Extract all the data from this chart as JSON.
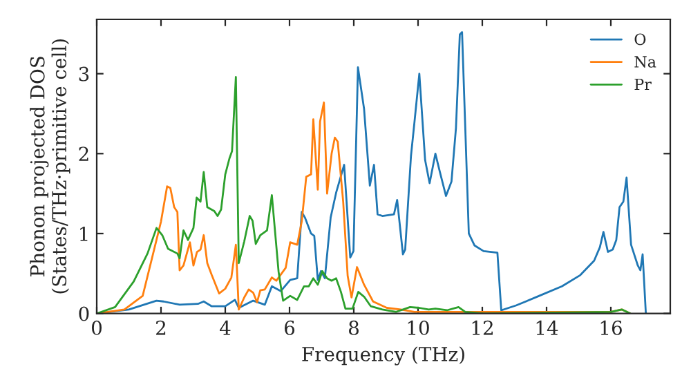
{
  "chart_data": {
    "type": "line",
    "xlabel": "Frequency (THz)",
    "ylabel": "Phonon projected DOS\n(States/THz·primitive cell)",
    "xlim": [
      0,
      17.85
    ],
    "ylim": [
      0,
      3.68
    ],
    "xticks": [
      0,
      2,
      4,
      6,
      8,
      10,
      12,
      14,
      16
    ],
    "yticks": [
      0,
      1,
      2,
      3
    ],
    "grid": false,
    "legend": "top right",
    "marker": "none",
    "line_style": "solid",
    "series": [
      {
        "name": "O",
        "color": "#1f77b4",
        "x": [
          0,
          1.0,
          1.86,
          2.08,
          2.58,
          3.15,
          3.33,
          3.58,
          4.0,
          4.3,
          4.42,
          4.87,
          5.23,
          5.45,
          5.73,
          6.02,
          6.24,
          6.38,
          6.48,
          6.67,
          6.77,
          6.88,
          6.98,
          7.1,
          7.28,
          7.45,
          7.7,
          7.89,
          7.99,
          8.13,
          8.32,
          8.5,
          8.63,
          8.74,
          8.89,
          9.25,
          9.35,
          9.53,
          9.6,
          9.78,
          9.89,
          10.04,
          10.22,
          10.36,
          10.54,
          10.68,
          10.87,
          11.04,
          11.18,
          11.3,
          11.37,
          11.58,
          11.76,
          12.04,
          12.47,
          12.59,
          13.05,
          13.77,
          14.48,
          15.05,
          15.48,
          15.66,
          15.77,
          15.91,
          16.06,
          16.17,
          16.27,
          16.39,
          16.49,
          16.63,
          16.84,
          16.92,
          16.99,
          17.09
        ],
        "values": [
          0,
          0.05,
          0.16,
          0.15,
          0.11,
          0.12,
          0.15,
          0.09,
          0.09,
          0.17,
          0.07,
          0.16,
          0.11,
          0.34,
          0.28,
          0.42,
          0.44,
          1.27,
          1.2,
          1.0,
          0.97,
          0.42,
          0.53,
          0.44,
          1.2,
          1.51,
          1.86,
          0.7,
          0.78,
          3.08,
          2.56,
          1.6,
          1.86,
          1.24,
          1.22,
          1.24,
          1.42,
          0.74,
          0.8,
          1.97,
          2.4,
          3.0,
          1.92,
          1.63,
          2.0,
          1.77,
          1.47,
          1.65,
          2.32,
          3.49,
          3.52,
          1.0,
          0.85,
          0.78,
          0.76,
          0.04,
          0.1,
          0.22,
          0.34,
          0.48,
          0.66,
          0.83,
          1.02,
          0.77,
          0.8,
          0.92,
          1.33,
          1.4,
          1.7,
          0.86,
          0.6,
          0.54,
          0.74,
          0
        ]
      },
      {
        "name": "Na",
        "color": "#ff7f0e",
        "x": [
          0,
          0.86,
          1.43,
          1.86,
          2.0,
          2.19,
          2.29,
          2.41,
          2.51,
          2.58,
          2.7,
          2.9,
          3.01,
          3.12,
          3.23,
          3.33,
          3.44,
          3.58,
          3.81,
          4.0,
          4.19,
          4.33,
          4.42,
          4.59,
          4.73,
          4.87,
          4.99,
          5.09,
          5.23,
          5.45,
          5.59,
          5.88,
          6.02,
          6.24,
          6.38,
          6.52,
          6.67,
          6.74,
          6.88,
          6.95,
          7.07,
          7.17,
          7.31,
          7.41,
          7.5,
          7.67,
          7.81,
          7.93,
          8.1,
          8.32,
          8.6,
          9.03,
          9.46,
          9.89,
          12.0,
          16.0,
          16.34,
          16.6
        ],
        "values": [
          0,
          0.05,
          0.22,
          0.92,
          1.15,
          1.59,
          1.57,
          1.33,
          1.27,
          0.54,
          0.6,
          0.89,
          0.6,
          0.77,
          0.8,
          0.98,
          0.63,
          0.48,
          0.25,
          0.31,
          0.45,
          0.86,
          0.05,
          0.2,
          0.3,
          0.26,
          0.14,
          0.29,
          0.3,
          0.45,
          0.41,
          0.57,
          0.89,
          0.86,
          1.15,
          1.71,
          1.74,
          2.43,
          1.55,
          2.4,
          2.64,
          1.5,
          2.0,
          2.2,
          2.15,
          1.4,
          0.47,
          0.2,
          0.58,
          0.36,
          0.15,
          0.07,
          0.05,
          0.02,
          0.02,
          0.02,
          0.05,
          0
        ]
      },
      {
        "name": "Pr",
        "color": "#2ca02c",
        "x": [
          0,
          0.57,
          1.15,
          1.58,
          1.86,
          2.04,
          2.22,
          2.51,
          2.58,
          2.7,
          2.84,
          3.01,
          3.11,
          3.23,
          3.33,
          3.44,
          3.66,
          3.76,
          3.87,
          4.0,
          4.13,
          4.21,
          4.33,
          4.42,
          4.59,
          4.76,
          4.85,
          4.95,
          5.09,
          5.3,
          5.45,
          5.66,
          5.8,
          6.02,
          6.24,
          6.45,
          6.6,
          6.74,
          6.88,
          7.02,
          7.17,
          7.31,
          7.45,
          7.6,
          7.74,
          7.96,
          8.14,
          8.32,
          8.53,
          8.89,
          9.32,
          9.75,
          10.04,
          10.33,
          10.54,
          10.9,
          11.26,
          11.47,
          12.04,
          16.0,
          16.34,
          16.6
        ],
        "values": [
          0,
          0.08,
          0.4,
          0.75,
          1.07,
          0.98,
          0.81,
          0.75,
          0.69,
          1.04,
          0.92,
          1.07,
          1.45,
          1.4,
          1.77,
          1.33,
          1.28,
          1.22,
          1.3,
          1.74,
          1.94,
          2.03,
          2.96,
          0.63,
          0.9,
          1.22,
          1.16,
          0.87,
          0.98,
          1.04,
          1.48,
          0.52,
          0.16,
          0.22,
          0.17,
          0.34,
          0.34,
          0.44,
          0.36,
          0.53,
          0.44,
          0.41,
          0.44,
          0.27,
          0.06,
          0.06,
          0.27,
          0.21,
          0.09,
          0.05,
          0.02,
          0.08,
          0.07,
          0.05,
          0.06,
          0.04,
          0.08,
          0.02,
          0.0,
          0.02,
          0.05,
          0
        ]
      }
    ]
  }
}
